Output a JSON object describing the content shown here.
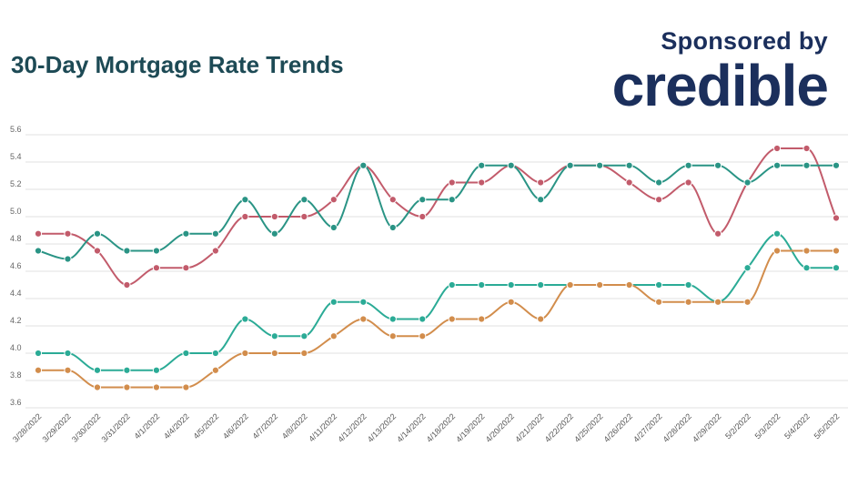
{
  "header": {
    "title": "30-Day Mortgage Rate Trends",
    "sponsor_text": "Sponsored by",
    "sponsor_logo": "credible"
  },
  "chart_data": {
    "type": "line",
    "title": "30-Day Mortgage Rate Trends",
    "xlabel": "",
    "ylabel": "",
    "ylim": [
      3.6,
      5.6
    ],
    "yticks": [
      "3.6",
      "3.8",
      "4.0",
      "4.2",
      "4.4",
      "4.6",
      "4.8",
      "5.0",
      "5.2",
      "5.4",
      "5.6"
    ],
    "grid": true,
    "categories": [
      "3/28/2022",
      "3/29/2022",
      "3/30/2022",
      "3/31/2022",
      "4/1/2022",
      "4/4/2022",
      "4/5/2022",
      "4/6/2022",
      "4/7/2022",
      "4/8/2022",
      "4/11/2022",
      "4/12/2022",
      "4/13/2022",
      "4/14/2022",
      "4/18/2022",
      "4/19/2022",
      "4/20/2022",
      "4/21/2022",
      "4/22/2022",
      "4/25/2022",
      "4/26/2022",
      "4/27/2022",
      "4/28/2022",
      "4/29/2022",
      "5/2/2022",
      "5/3/2022",
      "5/4/2022",
      "5/5/2022"
    ],
    "series": [
      {
        "color": "#c25b6b",
        "values": [
          4.875,
          4.875,
          4.75,
          4.5,
          4.625,
          4.625,
          4.75,
          5.0,
          5.0,
          5.0,
          5.125,
          5.375,
          5.125,
          5.0,
          5.25,
          5.25,
          5.375,
          5.25,
          5.375,
          5.375,
          5.25,
          5.125,
          5.25,
          4.875,
          5.25,
          5.5,
          5.5,
          4.99
        ]
      },
      {
        "color": "#2a9485",
        "values": [
          4.75,
          4.69,
          4.875,
          4.75,
          4.75,
          4.875,
          4.875,
          5.125,
          4.875,
          5.125,
          4.92,
          5.375,
          4.92,
          5.125,
          5.125,
          5.375,
          5.375,
          5.125,
          5.375,
          5.375,
          5.375,
          5.25,
          5.375,
          5.375,
          5.25,
          5.375,
          5.375,
          5.375
        ]
      },
      {
        "color": "#2bab96",
        "values": [
          4.0,
          4.0,
          3.875,
          3.875,
          3.875,
          4.0,
          4.0,
          4.25,
          4.125,
          4.125,
          4.375,
          4.375,
          4.25,
          4.25,
          4.5,
          4.5,
          4.5,
          4.5,
          4.5,
          4.5,
          4.5,
          4.5,
          4.5,
          4.375,
          4.625,
          4.875,
          4.625,
          4.625
        ]
      },
      {
        "color": "#d28d4c",
        "values": [
          3.875,
          3.875,
          3.75,
          3.75,
          3.75,
          3.75,
          3.875,
          4.0,
          4.0,
          4.0,
          4.125,
          4.25,
          4.125,
          4.125,
          4.25,
          4.25,
          4.375,
          4.25,
          4.5,
          4.5,
          4.5,
          4.375,
          4.375,
          4.375,
          4.375,
          4.75,
          4.75,
          4.75
        ]
      }
    ]
  }
}
